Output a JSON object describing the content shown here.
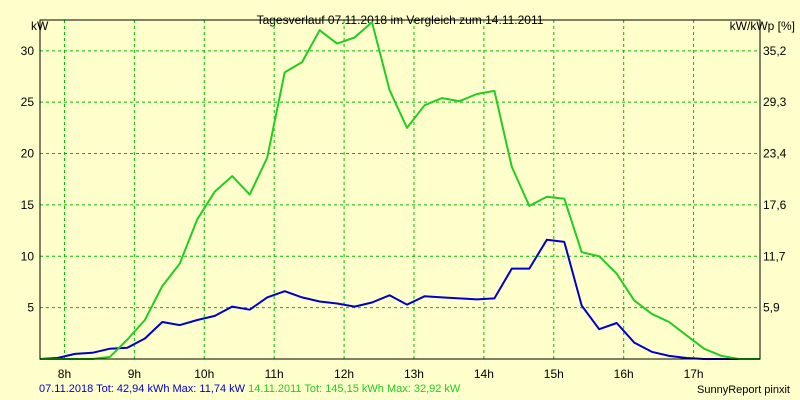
{
  "chart_data": {
    "type": "line",
    "title": "Tagesverlauf 07.11.2018 im Vergleich zum 14.11.2011",
    "ylabel": "kW",
    "y2label": "kW/kWp [%]",
    "ylim": [
      0,
      33
    ],
    "xlim": [
      7.65,
      17.95
    ],
    "grid": true,
    "x_ticks": [
      8,
      9,
      10,
      11,
      12,
      13,
      14,
      15,
      16,
      17
    ],
    "x_tick_labels": [
      "8h",
      "9h",
      "10h",
      "11h",
      "12h",
      "13h",
      "14h",
      "15h",
      "16h",
      "17h"
    ],
    "y_ticks": [
      5,
      10,
      15,
      20,
      25,
      30
    ],
    "y_tick_labels": [
      "5",
      "10",
      "15",
      "20",
      "25",
      "30"
    ],
    "y2_ticks": [
      5,
      10,
      15,
      20,
      25,
      30
    ],
    "y2_tick_labels": [
      "5,9",
      "11,7",
      "17,6",
      "23,4",
      "29,3",
      "35,2"
    ],
    "series": [
      {
        "color": "#0000cc",
        "x": [
          7.65,
          7.9,
          8.15,
          8.4,
          8.65,
          8.9,
          9.15,
          9.4,
          9.65,
          9.9,
          10.15,
          10.4,
          10.65,
          10.9,
          11.15,
          11.4,
          11.65,
          11.9,
          12.15,
          12.4,
          12.65,
          12.9,
          13.15,
          13.4,
          13.65,
          13.9,
          14.15,
          14.4,
          14.65,
          14.9,
          15.15,
          15.4,
          15.65,
          15.9,
          16.15,
          16.4,
          16.65,
          16.9,
          17.15,
          17.4,
          17.65,
          17.95
        ],
        "y": [
          0,
          0.1,
          0.5,
          0.6,
          1.0,
          1.1,
          2.0,
          3.6,
          3.3,
          3.8,
          4.2,
          5.1,
          4.8,
          6.0,
          6.6,
          6.0,
          5.6,
          5.4,
          5.1,
          5.5,
          6.2,
          5.3,
          6.1,
          6.0,
          5.9,
          5.8,
          5.9,
          8.8,
          8.8,
          11.6,
          11.4,
          5.2,
          2.9,
          3.5,
          1.6,
          0.7,
          0.3,
          0.1,
          0,
          0,
          0,
          0
        ]
      },
      {
        "color": "#22cc22",
        "x": [
          7.65,
          7.9,
          8.15,
          8.4,
          8.65,
          8.9,
          9.15,
          9.4,
          9.65,
          9.9,
          10.15,
          10.4,
          10.65,
          10.9,
          11.15,
          11.4,
          11.65,
          11.9,
          12.15,
          12.4,
          12.65,
          12.9,
          13.15,
          13.4,
          13.65,
          13.9,
          14.15,
          14.4,
          14.65,
          14.9,
          15.15,
          15.4,
          15.65,
          15.9,
          16.15,
          16.4,
          16.65,
          16.9,
          17.15,
          17.4,
          17.65,
          17.95
        ],
        "y": [
          0,
          0,
          0,
          0,
          0.2,
          1.9,
          3.8,
          7.1,
          9.3,
          13.6,
          16.3,
          17.8,
          16.0,
          19.6,
          27.9,
          28.9,
          32.0,
          30.7,
          31.3,
          32.8,
          26.2,
          22.5,
          24.7,
          25.4,
          25.1,
          25.8,
          26.1,
          18.7,
          14.9,
          15.8,
          15.6,
          10.4,
          10.0,
          8.3,
          5.7,
          4.4,
          3.6,
          2.3,
          1.0,
          0.3,
          0,
          0
        ]
      }
    ]
  },
  "footer": {
    "series1_summary": "07.11.2018 Tot: 42,94 kWh Max: 11,74 kW",
    "series2_summary": "14.11.2011 Tot: 145,15 kWh Max: 32,92 kW",
    "credit": "SunnyReport pinxit"
  },
  "colors": {
    "background": "#ffffcc",
    "grid": "#00bb00",
    "series1": "#0000cc",
    "series2": "#22cc22"
  }
}
